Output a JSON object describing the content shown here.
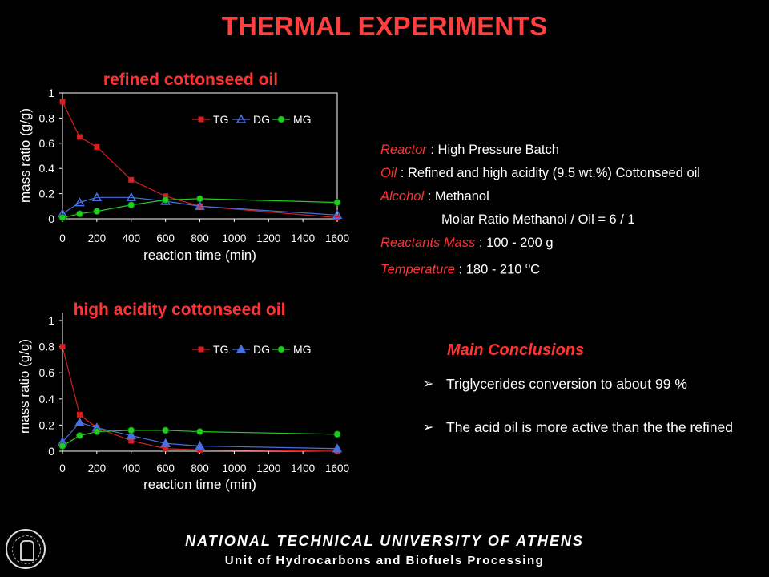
{
  "header": {
    "title": "THERMAL EXPERIMENTS"
  },
  "info": {
    "reactor_label": "Reactor",
    "reactor_value": "High Pressure Batch",
    "oil_label": "Oil",
    "oil_value": "Refined and high acidity (9.5 wt.%) Cottonseed oil",
    "alcohol_label": "Alcohol",
    "alcohol_value": "Methanol",
    "molar_ratio": "Molar Ratio Methanol / Oil = 6 / 1",
    "mass_label": "Reactants Mass",
    "mass_value": "100 - 200 g",
    "temp_label": "Temperature",
    "temp_value_pre": "180 - 210 ",
    "temp_sup": "o",
    "temp_value_post": "C"
  },
  "conclusions": {
    "title": "Main Conclusions",
    "items": [
      "Triglycerides conversion to about 99 %",
      "The acid oil is more active than the the refined"
    ]
  },
  "footer": {
    "university": "NATIONAL TECHNICAL UNIVERSITY OF ATHENS",
    "unit": "Unit of Hydrocarbons and Biofuels Processing"
  },
  "chart_data": [
    {
      "type": "line",
      "title": "refined cottonseed oil",
      "xlabel": "reaction time (min)",
      "ylabel": "mass ratio (g/g)",
      "xlim": [
        0,
        1600
      ],
      "ylim": [
        0,
        1
      ],
      "xticks": [
        0,
        200,
        400,
        600,
        800,
        1000,
        1200,
        1400,
        1600
      ],
      "yticks": [
        0,
        0.2,
        0.4,
        0.6,
        0.8,
        1
      ],
      "ytick_labels": [
        "0",
        "0.2",
        "0.4",
        "0.6",
        "0.8",
        "1"
      ],
      "grid": false,
      "legend_position": "top-right",
      "series": [
        {
          "name": "TG",
          "color": "#d42020",
          "marker": "square",
          "x": [
            0,
            100,
            200,
            400,
            600,
            800,
            1600
          ],
          "y": [
            0.93,
            0.65,
            0.57,
            0.31,
            0.18,
            0.1,
            0.01
          ]
        },
        {
          "name": "DG",
          "color": "#4a6fe0",
          "marker": "triangle",
          "x": [
            0,
            100,
            200,
            400,
            600,
            800,
            1600
          ],
          "y": [
            0.04,
            0.13,
            0.17,
            0.17,
            0.14,
            0.1,
            0.03
          ]
        },
        {
          "name": "MG",
          "color": "#22cc22",
          "marker": "circle",
          "x": [
            0,
            100,
            200,
            400,
            600,
            800,
            1600
          ],
          "y": [
            0.01,
            0.04,
            0.06,
            0.11,
            0.15,
            0.16,
            0.13
          ]
        }
      ]
    },
    {
      "type": "line",
      "title": "high acidity cottonseed oil",
      "xlabel": "reaction time (min)",
      "ylabel": "mass ratio (g/g)",
      "xlim": [
        0,
        1600
      ],
      "ylim": [
        0,
        1
      ],
      "xticks": [
        0,
        200,
        400,
        600,
        800,
        1000,
        1200,
        1400,
        1600
      ],
      "yticks": [
        0,
        0.2,
        0.4,
        0.6,
        0.8,
        1
      ],
      "ytick_labels": [
        "0",
        "0.2",
        "0.4",
        "0.6",
        "0.8",
        "1"
      ],
      "grid": false,
      "legend_position": "top-right",
      "series": [
        {
          "name": "TG",
          "color": "#d42020",
          "marker": "square",
          "x": [
            0,
            100,
            200,
            400,
            600,
            800,
            1600
          ],
          "y": [
            0.8,
            0.28,
            0.18,
            0.08,
            0.02,
            0.01,
            0.0
          ]
        },
        {
          "name": "DG",
          "color": "#4a6fe0",
          "marker": "triangle",
          "x": [
            0,
            100,
            200,
            400,
            600,
            800,
            1600
          ],
          "y": [
            0.07,
            0.22,
            0.18,
            0.12,
            0.06,
            0.04,
            0.02
          ]
        },
        {
          "name": "MG",
          "color": "#22cc22",
          "marker": "circle",
          "x": [
            0,
            100,
            200,
            400,
            600,
            800,
            1600
          ],
          "y": [
            0.04,
            0.12,
            0.15,
            0.16,
            0.16,
            0.15,
            0.13
          ]
        }
      ]
    }
  ]
}
